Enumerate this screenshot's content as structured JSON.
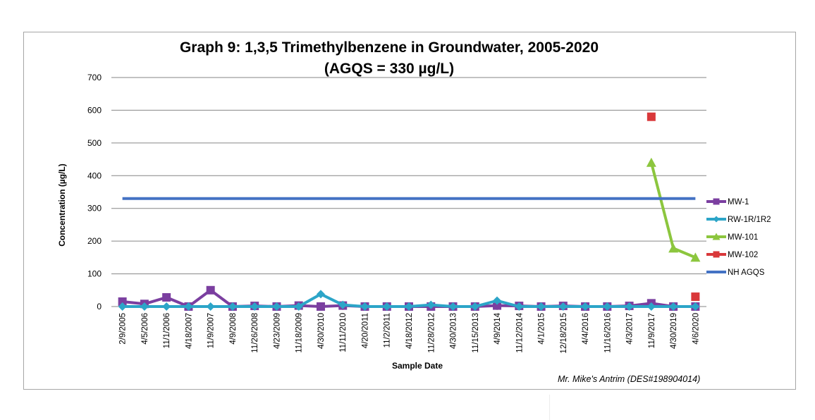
{
  "chart_data": {
    "type": "line",
    "title": "Graph 9: 1,3,5 Trimethylbenzene in Groundwater, 2005-2020",
    "subtitle": "(AGQS = 330 µg/L)",
    "xlabel": "Sample Date",
    "ylabel": "Concentration (µg/L)",
    "ylim": [
      0,
      700
    ],
    "yticks": [
      "0",
      "100",
      "200",
      "300",
      "400",
      "500",
      "600",
      "700"
    ],
    "grid": true,
    "legend_position": "right",
    "credit": "Mr. Mike's Antrim (DES#198904014)",
    "categories": [
      "2/9/2005",
      "4/5/2006",
      "11/1/2006",
      "4/18/2007",
      "11/9/2007",
      "4/9/2008",
      "11/26/2008",
      "4/23/2009",
      "11/18/2009",
      "4/30/2010",
      "11/11/2010",
      "4/20/2011",
      "11/2/2011",
      "4/18/2012",
      "11/28/2012",
      "4/30/2013",
      "11/15/2013",
      "4/9/2014",
      "11/12/2014",
      "4/1/2015",
      "12/18/2015",
      "4/4/2016",
      "11/16/2016",
      "4/3/2017",
      "11/9/2017",
      "4/30/2019",
      "4/6/2020"
    ],
    "series": [
      {
        "name": "MW-1",
        "color": "#7b3fa0",
        "marker": "square",
        "values": [
          15,
          8,
          28,
          0,
          50,
          0,
          2,
          0,
          3,
          0,
          3,
          0,
          0,
          0,
          0,
          0,
          0,
          3,
          2,
          0,
          2,
          0,
          0,
          2,
          10,
          0,
          0
        ]
      },
      {
        "name": "RW-1R/1R2",
        "color": "#2ca5c8",
        "marker": "diamond",
        "values": [
          0,
          0,
          0,
          0,
          0,
          0,
          0,
          0,
          0,
          38,
          5,
          0,
          0,
          0,
          5,
          0,
          0,
          18,
          0,
          0,
          0,
          0,
          0,
          0,
          0,
          0,
          0
        ]
      },
      {
        "name": "MW-101",
        "color": "#8cc63e",
        "marker": "triangle",
        "values": [
          null,
          null,
          null,
          null,
          null,
          null,
          null,
          null,
          null,
          null,
          null,
          null,
          null,
          null,
          null,
          null,
          null,
          null,
          null,
          null,
          null,
          null,
          null,
          null,
          440,
          178,
          150
        ]
      },
      {
        "name": "MW-102",
        "color": "#d9383a",
        "marker": "square",
        "values": [
          null,
          null,
          null,
          null,
          null,
          null,
          null,
          null,
          null,
          null,
          null,
          null,
          null,
          null,
          null,
          null,
          null,
          null,
          null,
          null,
          null,
          null,
          null,
          null,
          580,
          null,
          30
        ]
      },
      {
        "name": "NH AGQS",
        "color": "#4472c4",
        "marker": "none",
        "values": [
          330,
          330,
          330,
          330,
          330,
          330,
          330,
          330,
          330,
          330,
          330,
          330,
          330,
          330,
          330,
          330,
          330,
          330,
          330,
          330,
          330,
          330,
          330,
          330,
          330,
          330,
          330
        ]
      }
    ]
  }
}
